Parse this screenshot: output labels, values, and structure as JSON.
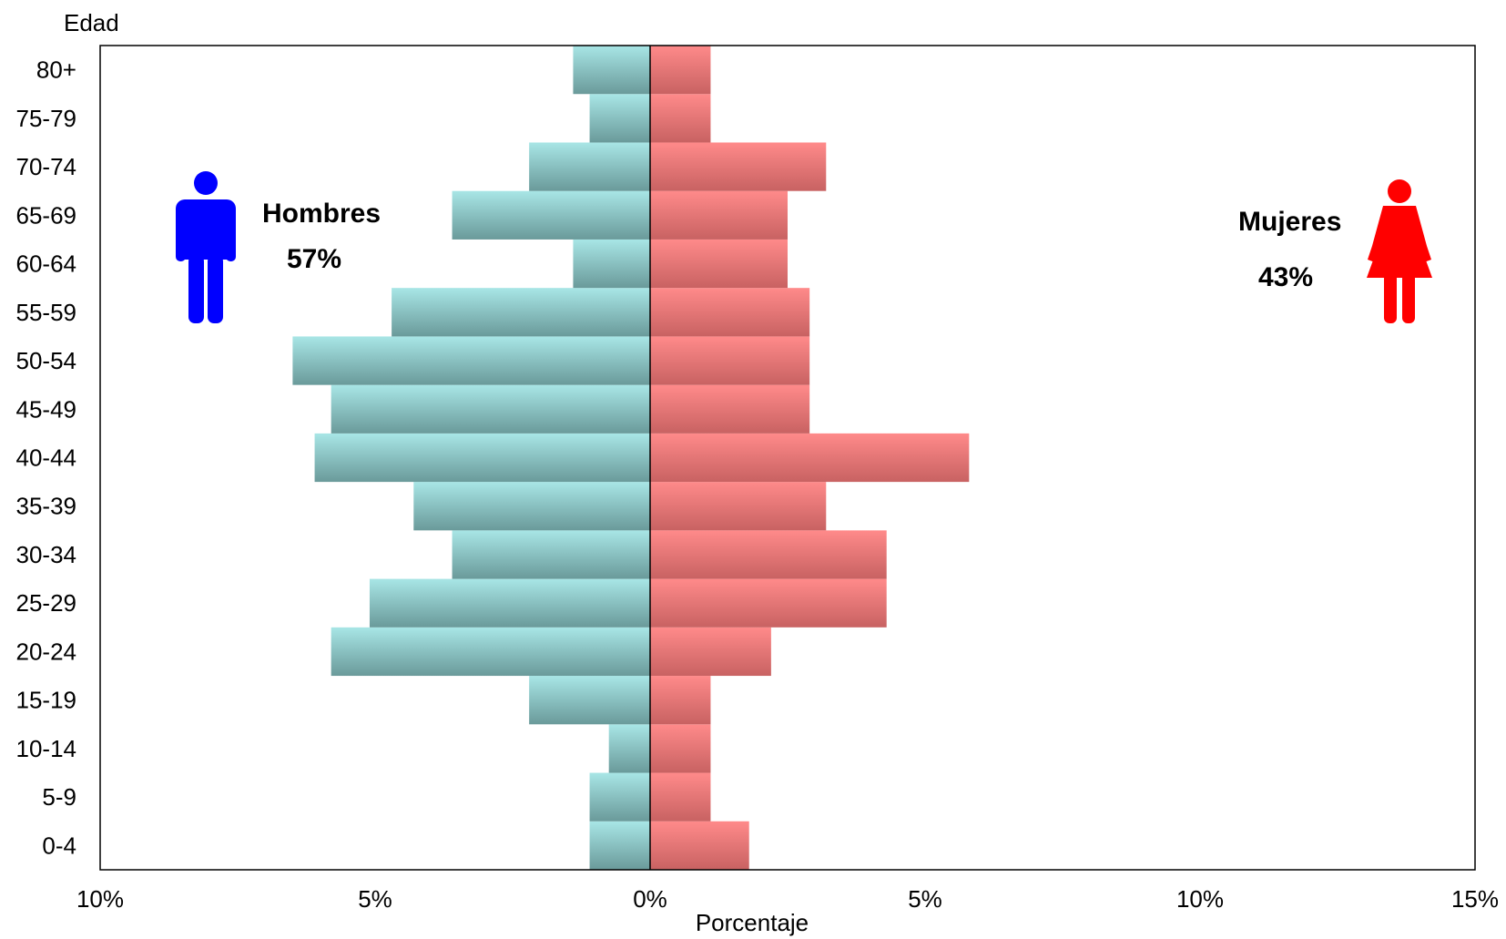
{
  "chart_data": {
    "type": "bar",
    "orientation": "horizontal",
    "xlabel": "Porcentaje",
    "ylabel": "Edad",
    "xlim": [
      -10,
      15
    ],
    "x_ticks": [
      -10,
      -5,
      0,
      5,
      10,
      15
    ],
    "x_tick_labels": [
      "10%",
      "5%",
      "0%",
      "5%",
      "10%",
      "15%"
    ],
    "categories": [
      "0-4",
      "5-9",
      "10-14",
      "15-19",
      "20-24",
      "25-29",
      "30-34",
      "35-39",
      "40-44",
      "45-49",
      "50-54",
      "55-59",
      "60-64",
      "65-69",
      "70-74",
      "75-79",
      "80+"
    ],
    "series": [
      {
        "name": "Hombres",
        "values": [
          -1.1,
          -1.1,
          -0.75,
          -2.2,
          -5.8,
          -5.1,
          -3.6,
          -4.3,
          -6.1,
          -5.8,
          -6.5,
          -4.7,
          -1.4,
          -3.6,
          -2.2,
          -1.1,
          -1.4
        ],
        "color": "#7fcaca"
      },
      {
        "name": "Mujeres",
        "values": [
          1.8,
          1.1,
          1.1,
          1.1,
          2.2,
          4.3,
          4.3,
          3.2,
          5.8,
          2.9,
          2.9,
          2.9,
          2.5,
          2.5,
          3.2,
          1.1,
          1.1
        ],
        "color": "#f07b7b"
      }
    ],
    "annotations": [
      {
        "key": "male",
        "label": "Hombres",
        "value": "57%",
        "icon": "man-icon",
        "color": "#0000ff"
      },
      {
        "key": "female",
        "label": "Mujeres",
        "value": "43%",
        "icon": "woman-icon",
        "color": "#ff0000"
      }
    ],
    "grid": false,
    "legend": "none"
  }
}
